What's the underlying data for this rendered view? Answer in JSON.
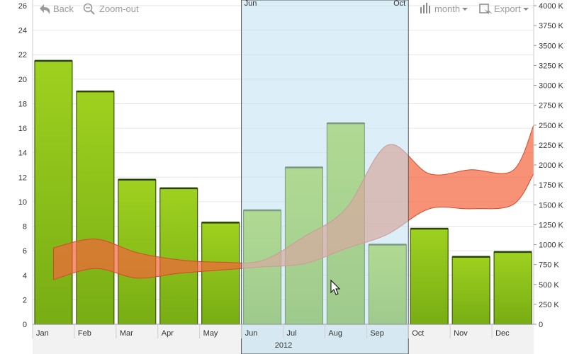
{
  "toolbar": {
    "back_label": "Back",
    "zoom_out_label": "Zoom-out",
    "period_label": "month",
    "export_label": "Export"
  },
  "selection": {
    "start_label": "Jun",
    "end_label": "Oct"
  },
  "chart_data": {
    "type": "bar",
    "categories": [
      "Jan",
      "Feb",
      "Mar",
      "Apr",
      "May",
      "Jun",
      "Jul",
      "Aug",
      "Sep",
      "Oct",
      "Nov",
      "Dec"
    ],
    "year_label": "2012",
    "series": [
      {
        "type": "bar",
        "axis": "left",
        "color": "#8dc21f",
        "values": [
          21.5,
          19.0,
          11.8,
          11.1,
          8.3,
          9.3,
          12.8,
          16.4,
          6.5,
          7.8,
          5.5,
          5.9
        ]
      },
      {
        "type": "area-range",
        "axis": "right",
        "color": "#f4643c",
        "x": [
          0,
          1,
          2,
          3,
          4,
          5,
          6,
          7,
          8,
          9,
          10,
          11,
          11.5
        ],
        "upper": [
          960,
          1070,
          900,
          810,
          780,
          800,
          1100,
          1450,
          2250,
          1890,
          1940,
          1930,
          2500
        ],
        "lower": [
          560,
          700,
          580,
          640,
          680,
          720,
          760,
          950,
          1130,
          1450,
          1450,
          1500,
          1890
        ]
      }
    ],
    "left_axis": {
      "min": 0,
      "max": 26,
      "ticks": [
        0,
        2,
        4,
        6,
        8,
        10,
        12,
        14,
        16,
        18,
        20,
        22,
        24,
        26
      ]
    },
    "right_axis": {
      "min": 0,
      "max": 4000,
      "ticks": [
        "0",
        "250 K",
        "500 K",
        "750 K",
        "1000 K",
        "1250 K",
        "1500 K",
        "1750 K",
        "2000 K",
        "2250 K",
        "2500 K",
        "2750 K",
        "3000 K",
        "3250 K",
        "3500 K",
        "3750 K",
        "4000 K"
      ]
    },
    "selection_range": [
      "Jun",
      "Oct"
    ],
    "grid": true,
    "colors": {
      "grid": "#e6e6e6",
      "selection": "#d8eef8",
      "bar_edge": "#3a5a0a"
    }
  }
}
